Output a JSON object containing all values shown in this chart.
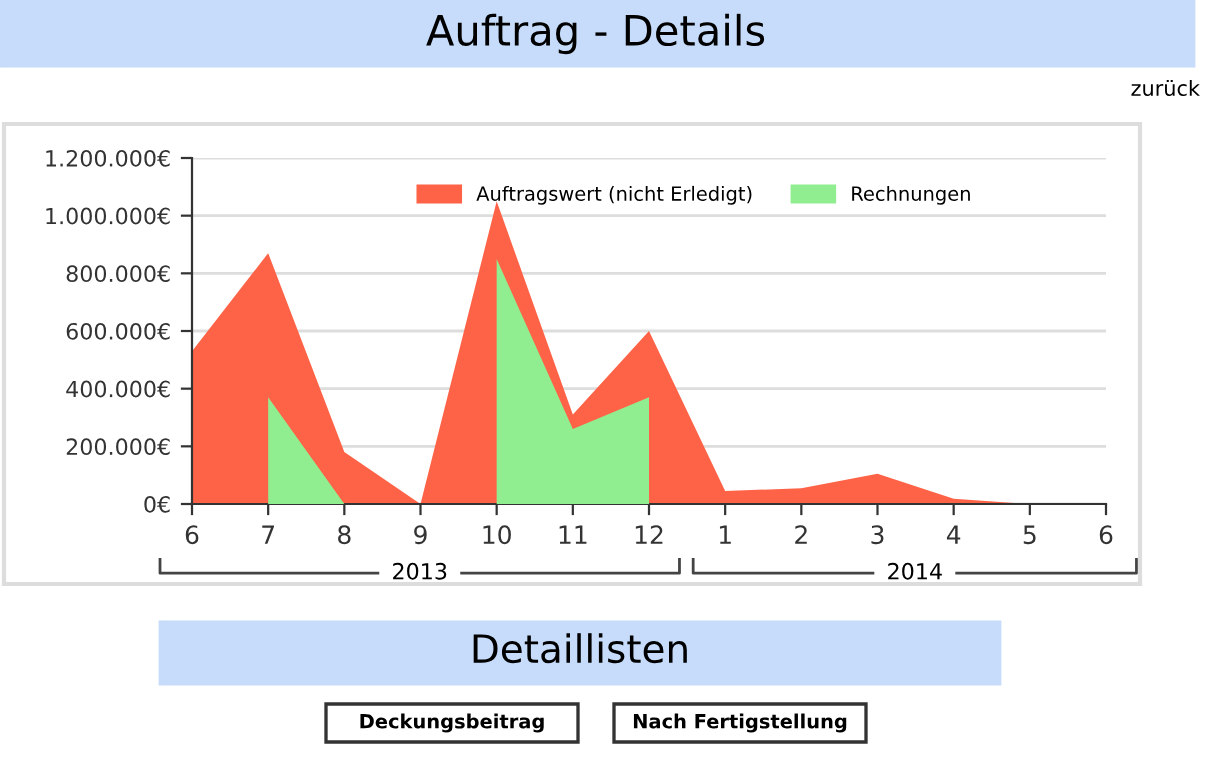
{
  "chart_data": {
    "type": "area",
    "title": "Auftrag - Details",
    "categories": [
      "6",
      "7",
      "8",
      "9",
      "10",
      "11",
      "12",
      "1",
      "2",
      "3",
      "4",
      "5",
      "6"
    ],
    "series": [
      {
        "name": "Auftragswert (nicht Erledigt)",
        "color": "#ff6347",
        "values": [
          530000,
          870000,
          180000,
          0,
          1050000,
          310000,
          600000,
          45000,
          55000,
          105000,
          18000,
          0,
          0
        ]
      },
      {
        "name": "Rechnungen",
        "color": "#90ee90",
        "values": [
          null,
          370000,
          0,
          null,
          850000,
          260000,
          370000,
          null,
          null,
          null,
          null,
          null,
          null
        ]
      }
    ],
    "ylim": [
      0,
      1200000
    ],
    "yticks": [
      {
        "value": 0,
        "label": "0€"
      },
      {
        "value": 200000,
        "label": "200.000€"
      },
      {
        "value": 400000,
        "label": "400.000€"
      },
      {
        "value": 600000,
        "label": "600.000€"
      },
      {
        "value": 800000,
        "label": "800.000€"
      },
      {
        "value": 1000000,
        "label": "1.000.000€"
      },
      {
        "value": 1200000,
        "label": "1.200.000€"
      }
    ],
    "grid": "y",
    "legend": "top",
    "annotations": [
      "2013",
      "2014",
      "zurück",
      "Detaillisten",
      "Deckungsbeitrag",
      "Nach Fertigstellung"
    ]
  }
}
